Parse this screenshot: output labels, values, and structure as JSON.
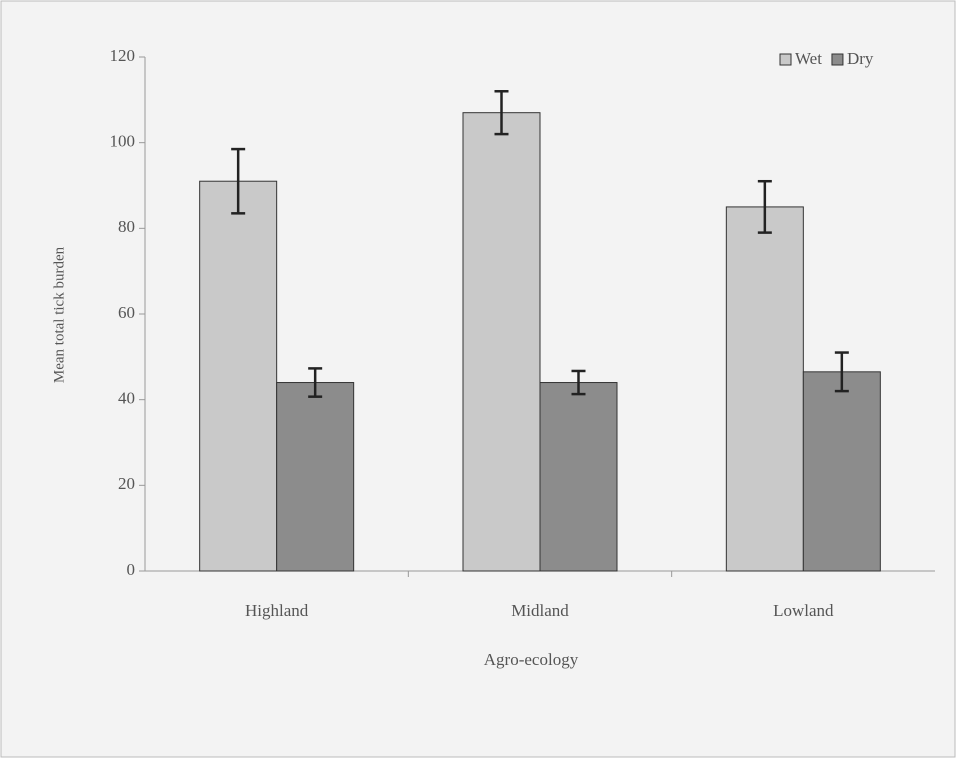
{
  "chart_data": {
    "type": "bar",
    "x_label": "Agro-ecology",
    "y_label": "Mean total tick burden",
    "categories": [
      "Highland",
      "Midland",
      "Lowland"
    ],
    "series": [
      {
        "name": "Wet",
        "color": "#c9c9c9",
        "values": [
          91,
          107,
          85
        ],
        "errors": [
          7.5,
          5,
          6
        ]
      },
      {
        "name": "Dry",
        "color": "#8c8c8c",
        "values": [
          44,
          44,
          46.5
        ],
        "errors": [
          3.3,
          2.7,
          4.5
        ]
      }
    ],
    "ylim": [
      0,
      120
    ],
    "yticks": [
      0,
      20,
      40,
      60,
      80,
      100,
      120
    ],
    "grid": false,
    "legend": "top-right"
  }
}
